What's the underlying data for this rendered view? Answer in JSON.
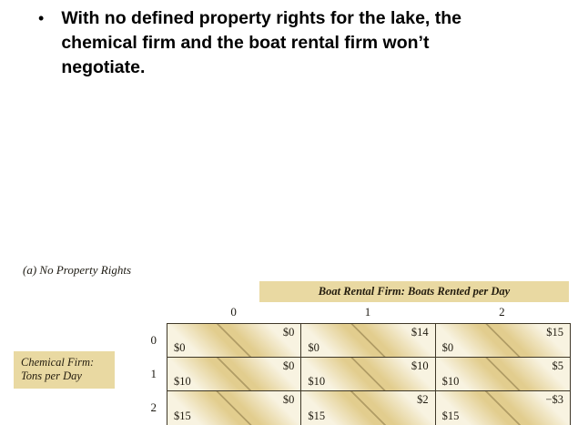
{
  "slide": {
    "bullet_glyph": "•",
    "bullet_text": "With no defined property rights for the lake, the chemical firm and the boat rental firm won’t negotiate."
  },
  "figure": {
    "caption": "(a) No Property Rights",
    "top_header": "Boat Rental Firm: Boats Rented per Day",
    "left_header": [
      "Chemical Firm:",
      "Tons per Day"
    ],
    "col_labels": [
      "0",
      "1",
      "2"
    ],
    "row_labels": [
      "0",
      "1",
      "2"
    ],
    "rows": [
      {
        "cells": [
          {
            "tr": "$0",
            "bl": "$0"
          },
          {
            "tr": "$14",
            "bl": "$0"
          },
          {
            "tr": "$15",
            "bl": "$0"
          }
        ]
      },
      {
        "cells": [
          {
            "tr": "$0",
            "bl": "$10"
          },
          {
            "tr": "$10",
            "bl": "$10"
          },
          {
            "tr": "$5",
            "bl": "$10"
          }
        ]
      },
      {
        "cells": [
          {
            "tr": "$0",
            "bl": "$15"
          },
          {
            "tr": "$2",
            "bl": "$15"
          },
          {
            "tr": "−$3",
            "bl": "$15"
          }
        ]
      }
    ]
  },
  "chart_data": {
    "type": "table",
    "title": "(a) No Property Rights",
    "col_header": "Boat Rental Firm: Boats Rented per Day",
    "row_header": "Chemical Firm: Tons per Day",
    "cols": [
      "0",
      "1",
      "2"
    ],
    "rows": [
      "0",
      "1",
      "2"
    ],
    "chemical_firm_payoffs": [
      [
        "$0",
        "$0",
        "$0"
      ],
      [
        "$10",
        "$10",
        "$10"
      ],
      [
        "$15",
        "$15",
        "$15"
      ]
    ],
    "boat_rental_firm_payoffs": [
      [
        "$0",
        "$14",
        "$15"
      ],
      [
        "$0",
        "$10",
        "$5"
      ],
      [
        "$0",
        "$2",
        "−$3"
      ]
    ]
  },
  "colors": {
    "tan_fill": "#e9d9a2",
    "cell_stripe": "#e2cd8e",
    "cell_cream": "#f8f3e1",
    "grid_line": "#3f3828"
  }
}
